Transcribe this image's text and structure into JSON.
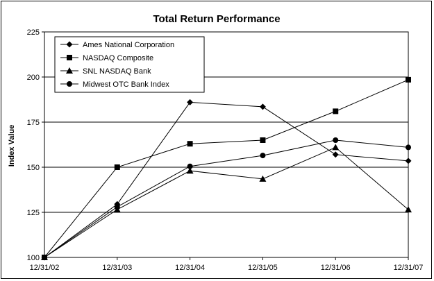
{
  "chart_data": {
    "type": "line",
    "title": "Total Return Performance",
    "xlabel": "",
    "ylabel": "Index Value",
    "x": [
      "12/31/02",
      "12/31/03",
      "12/31/04",
      "12/31/05",
      "12/31/06",
      "12/31/07"
    ],
    "ylim": [
      100,
      225
    ],
    "yticks": [
      100,
      125,
      150,
      175,
      200,
      225
    ],
    "grid": true,
    "legend_position": "top-left",
    "series": [
      {
        "name": "Ames National Corporation",
        "marker": "diamond",
        "values": [
          100,
          129.5,
          186,
          183.5,
          157,
          153.5
        ]
      },
      {
        "name": "NASDAQ Composite",
        "marker": "square",
        "values": [
          100,
          150,
          163,
          165,
          181,
          198.5
        ]
      },
      {
        "name": "SNL NASDAQ Bank",
        "marker": "triangle",
        "values": [
          100,
          126.5,
          148,
          143.5,
          161,
          126.5
        ]
      },
      {
        "name": "Midwest OTC Bank Index",
        "marker": "circle",
        "values": [
          100,
          128,
          150.5,
          156.5,
          165,
          161
        ]
      }
    ]
  }
}
